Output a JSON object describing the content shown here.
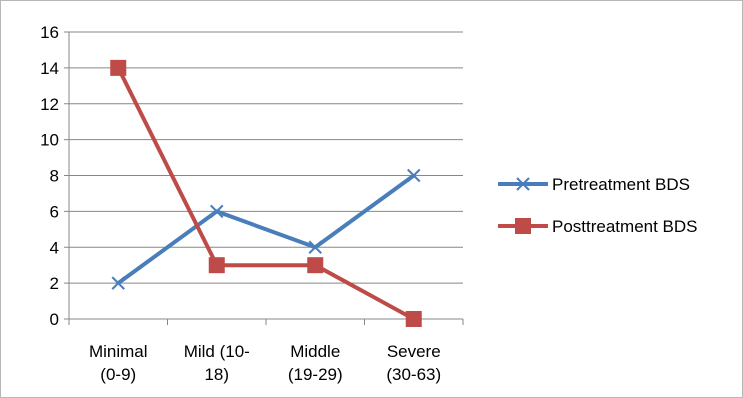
{
  "chart_data": {
    "type": "line",
    "title": "",
    "xlabel": "",
    "ylabel": "",
    "categories": [
      [
        "Minimal",
        "(0-9)"
      ],
      [
        "Mild (10-",
        "18)"
      ],
      [
        "Middle",
        "(19-29)"
      ],
      [
        "Severe",
        "(30-63)"
      ]
    ],
    "series": [
      {
        "name": "Pretreatment BDS",
        "values": [
          2,
          6,
          4,
          8
        ],
        "color": "#4a7ebb",
        "marker": "x"
      },
      {
        "name": "Posttreatment BDS",
        "values": [
          14,
          3,
          3,
          0
        ],
        "color": "#be4b48",
        "marker": "square"
      }
    ],
    "ylim": [
      0,
      16
    ],
    "yticks": [
      0,
      2,
      4,
      6,
      8,
      10,
      12,
      14,
      16
    ],
    "grid": true,
    "legend_position": "right"
  }
}
